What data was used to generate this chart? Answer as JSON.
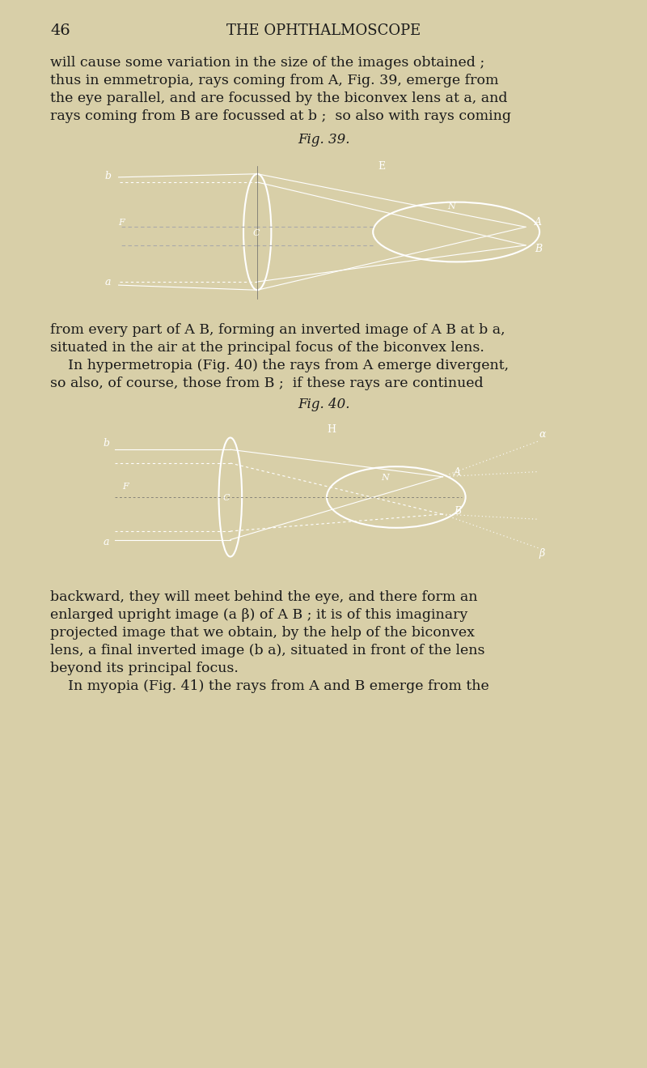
{
  "page_num": "46",
  "title": "THE OPHTHALMOSCOPE",
  "bg_color": "#d8cfa8",
  "fig39_caption": "Fig. 39.",
  "fig40_caption": "Fig. 40.",
  "text_block1": "will cause some variation in the size of the images obtained ;\nthus in emmetropia, rays coming from ᴀ, Fig. 39, emerge from\nthe eye parallel, and are focussed by the biconvex lens at α, and\nrays coming from ʙ are focussed at β ; so also with rays coming",
  "text_block2": "from every part of ᴀ ʙ, forming an inverted image of ᴀ ʙ at β α,\nsituated in the air at the principal focus of the biconvex lens.\n    In hypermetropia (Fig. 40) the rays from ᴀ emerge divergent,\nso also, of course, those from ʙ ; if these rays are continued",
  "text_block3": "backward, they will meet behind the eye, and there form an\nenlarged upright image (α β) of ᴀ ʙ ; it is of this imaginary\nprojected image that we obtain, by the help of the biconvex\nlens, a final inverted image (β α), situated in front of the lens\nbeyond its principal focus.\n    In myopia (Fig. 41) the rays from ᴀ and ʙ emerge from the",
  "diagram_bg": "#0a0a0a",
  "ray_color": "#ffffff",
  "dashed_color": "#888888"
}
